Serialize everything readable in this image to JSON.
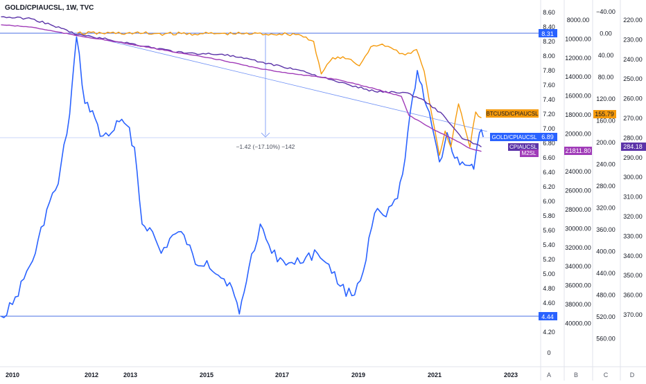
{
  "header": {
    "title": "GOLD/CPIAUCSL, 1W, TVC"
  },
  "colors": {
    "gold": "#2962ff",
    "btc": "#f59a0c",
    "cpi": "#5b33a8",
    "m2": "#a03bb8",
    "hline": "#4a6fe3",
    "measure": "#6c8ef5"
  },
  "chart_data": {
    "type": "line",
    "x_ticks": [
      "2010",
      "2012",
      "2013",
      "2015",
      "2017",
      "2019",
      "2021",
      "2023"
    ],
    "axes": {
      "A": {
        "label": "A",
        "ylim": [
          4.2,
          8.6
        ],
        "ticks": [
          "8.60",
          "8.40",
          "8.20",
          "8.00",
          "7.80",
          "7.60",
          "7.40",
          "7.20",
          "7.00",
          "6.80",
          "6.60",
          "6.40",
          "6.20",
          "6.00",
          "5.80",
          "5.60",
          "5.40",
          "5.20",
          "5.00",
          "4.80",
          "4.60",
          "4.20",
          "0"
        ]
      },
      "B": {
        "label": "B",
        "reversed": true,
        "ticks": [
          "8000.00",
          "10000.00",
          "12000.00",
          "14000.00",
          "16000.00",
          "18000.00",
          "20000.00",
          "22000.00",
          "24000.00",
          "26000.00",
          "28000.00",
          "30000.00",
          "32000.00",
          "34000.00",
          "36000.00",
          "38000.00",
          "40000.00"
        ]
      },
      "C": {
        "label": "C",
        "reversed": true,
        "ticks": [
          "−40.00",
          "0.00",
          "40.00",
          "80.00",
          "120.00",
          "160.00",
          "200.00",
          "240.00",
          "280.00",
          "320.00",
          "360.00",
          "400.00",
          "440.00",
          "480.00",
          "520.00",
          "560.00"
        ]
      },
      "D": {
        "label": "D",
        "reversed": true,
        "ticks": [
          "220.00",
          "230.00",
          "240.00",
          "250.00",
          "260.00",
          "270.00",
          "280.00",
          "290.00",
          "300.00",
          "310.00",
          "320.00",
          "330.00",
          "340.00",
          "350.00",
          "360.00",
          "370.00"
        ]
      }
    },
    "series": [
      {
        "name": "GOLD/CPIAUCSL",
        "axis": "A",
        "last": "6.89",
        "points": [
          [
            2009.7,
            4.44
          ],
          [
            2010.0,
            4.6
          ],
          [
            2010.3,
            4.95
          ],
          [
            2010.6,
            5.3
          ],
          [
            2010.9,
            5.9
          ],
          [
            2011.2,
            6.25
          ],
          [
            2011.5,
            7.2
          ],
          [
            2011.68,
            8.26
          ],
          [
            2011.9,
            7.35
          ],
          [
            2012.1,
            7.25
          ],
          [
            2012.3,
            6.9
          ],
          [
            2012.6,
            6.95
          ],
          [
            2012.8,
            7.1
          ],
          [
            2013.0,
            7.05
          ],
          [
            2013.2,
            6.75
          ],
          [
            2013.4,
            5.7
          ],
          [
            2013.6,
            5.65
          ],
          [
            2013.9,
            5.3
          ],
          [
            2014.2,
            5.55
          ],
          [
            2014.5,
            5.55
          ],
          [
            2014.8,
            5.15
          ],
          [
            2015.1,
            5.2
          ],
          [
            2015.4,
            5.0
          ],
          [
            2015.7,
            4.9
          ],
          [
            2015.95,
            4.47
          ],
          [
            2016.2,
            5.1
          ],
          [
            2016.5,
            5.7
          ],
          [
            2016.8,
            5.3
          ],
          [
            2017.1,
            5.2
          ],
          [
            2017.4,
            5.15
          ],
          [
            2017.7,
            5.25
          ],
          [
            2018.0,
            5.3
          ],
          [
            2018.3,
            5.15
          ],
          [
            2018.6,
            4.85
          ],
          [
            2018.9,
            4.72
          ],
          [
            2019.2,
            5.05
          ],
          [
            2019.5,
            5.85
          ],
          [
            2019.8,
            5.8
          ],
          [
            2020.1,
            6.05
          ],
          [
            2020.3,
            6.6
          ],
          [
            2020.5,
            7.45
          ],
          [
            2020.62,
            7.8
          ],
          [
            2020.8,
            7.4
          ],
          [
            2021.0,
            7.05
          ],
          [
            2021.2,
            6.55
          ],
          [
            2021.4,
            6.95
          ],
          [
            2021.6,
            6.6
          ],
          [
            2021.8,
            6.55
          ],
          [
            2022.0,
            6.5
          ],
          [
            2022.1,
            6.45
          ],
          [
            2022.25,
            6.95
          ],
          [
            2022.35,
            6.89
          ]
        ]
      },
      {
        "name": "BTCUSD/CPIAUCSL",
        "axis": "C",
        "last": "155.79",
        "points": [
          [
            2011.7,
            0
          ],
          [
            2013.0,
            0
          ],
          [
            2014.0,
            1
          ],
          [
            2015.0,
            1
          ],
          [
            2016.0,
            1
          ],
          [
            2017.0,
            1.5
          ],
          [
            2017.5,
            2
          ],
          [
            2017.9,
            15
          ],
          [
            2018.1,
            75
          ],
          [
            2018.4,
            45
          ],
          [
            2018.8,
            47
          ],
          [
            2019.1,
            60
          ],
          [
            2019.4,
            25
          ],
          [
            2019.7,
            20
          ],
          [
            2020.0,
            30
          ],
          [
            2020.3,
            40
          ],
          [
            2020.6,
            30
          ],
          [
            2020.8,
            70
          ],
          [
            2021.0,
            150
          ],
          [
            2021.2,
            225
          ],
          [
            2021.35,
            180
          ],
          [
            2021.5,
            210
          ],
          [
            2021.7,
            130
          ],
          [
            2021.85,
            170
          ],
          [
            2022.0,
            210
          ],
          [
            2022.15,
            145
          ],
          [
            2022.3,
            155.79
          ]
        ]
      },
      {
        "name": "CPIAUCSL",
        "axis": "D",
        "last": "284.18",
        "points": [
          [
            2009.7,
            218
          ],
          [
            2010.5,
            219
          ],
          [
            2011.0,
            222
          ],
          [
            2011.7,
            227
          ],
          [
            2012.5,
            229.5
          ],
          [
            2013.5,
            233
          ],
          [
            2014.5,
            236.5
          ],
          [
            2015.5,
            237
          ],
          [
            2016.5,
            241
          ],
          [
            2017.5,
            245
          ],
          [
            2018.5,
            251
          ],
          [
            2019.5,
            256
          ],
          [
            2020.3,
            256.5
          ],
          [
            2020.8,
            260.5
          ],
          [
            2021.3,
            268
          ],
          [
            2021.8,
            280
          ],
          [
            2022.3,
            284.18
          ]
        ]
      },
      {
        "name": "M2SL",
        "axis": "B",
        "last": "21811.80",
        "points": [
          [
            2009.7,
            8450
          ],
          [
            2010.5,
            8700
          ],
          [
            2011.7,
            9600
          ],
          [
            2012.5,
            10100
          ],
          [
            2013.5,
            10800
          ],
          [
            2014.5,
            11500
          ],
          [
            2015.5,
            12200
          ],
          [
            2016.5,
            13100
          ],
          [
            2017.5,
            13700
          ],
          [
            2018.5,
            14200
          ],
          [
            2019.5,
            15200
          ],
          [
            2020.2,
            16000
          ],
          [
            2020.4,
            18000
          ],
          [
            2021.0,
            19400
          ],
          [
            2021.6,
            20600
          ],
          [
            2022.0,
            21500
          ],
          [
            2022.3,
            21811.8
          ]
        ]
      }
    ],
    "price_lines": [
      {
        "value": "8.31"
      },
      {
        "value": "4.44"
      }
    ],
    "measurement": {
      "label": "−1.42 (−17.10%) −142"
    },
    "trendline": {
      "from": [
        2011.68,
        8.31
      ],
      "to": [
        2022.45,
        6.98
      ]
    }
  }
}
